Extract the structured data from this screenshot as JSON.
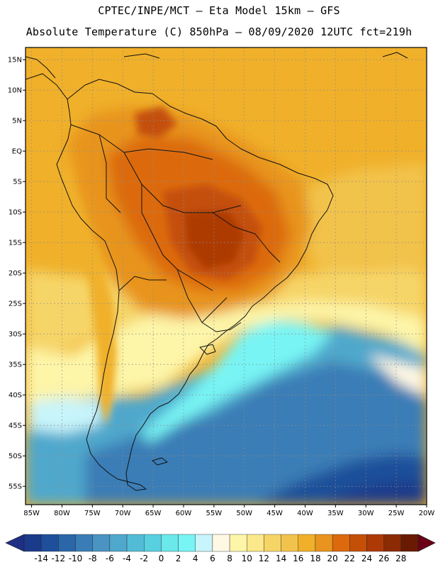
{
  "title": {
    "line1": "CPTEC/INPE/MCT –  Eta Model 15km – GFS",
    "line2": "Absolute Temperature (C) 850hPa – 08/09/2020 12UTC fct=219h"
  },
  "map": {
    "projection": "lat-lon",
    "lon_range": [
      -86,
      -20
    ],
    "lat_range": [
      -58,
      17
    ],
    "lat_ticks": [
      "15N",
      "10N",
      "5N",
      "EQ",
      "5S",
      "10S",
      "15S",
      "20S",
      "25S",
      "30S",
      "35S",
      "40S",
      "45S",
      "50S",
      "55S"
    ],
    "lon_ticks": [
      "85W",
      "80W",
      "75W",
      "70W",
      "65W",
      "60W",
      "55W",
      "50W",
      "45W",
      "40W",
      "35W",
      "30W",
      "25W",
      "20W"
    ],
    "variable": "Absolute Temperature",
    "units": "C",
    "level": "850hPa"
  },
  "colorbar": {
    "labels": [
      "-14",
      "-12",
      "-10",
      "-8",
      "-6",
      "-4",
      "-2",
      "0",
      "2",
      "4",
      "6",
      "8",
      "10",
      "12",
      "14",
      "16",
      "18",
      "20",
      "22",
      "24",
      "26",
      "28"
    ],
    "colors": [
      "#1a3a8a",
      "#1f4f9a",
      "#2a66a8",
      "#3a7db6",
      "#4a93c2",
      "#4fa8cc",
      "#52bcd6",
      "#58d0e0",
      "#6ae8ea",
      "#78f4f4",
      "#c8f4fb",
      "#fff8e4",
      "#fdf5a8",
      "#fbe88a",
      "#f6d567",
      "#f2c34c",
      "#f0b02a",
      "#e8941e",
      "#dc6a0c",
      "#c45008",
      "#ad3a06",
      "#8c2a04",
      "#6a1a02"
    ],
    "under_color": "#1e2f84",
    "over_color": "#6a0016"
  }
}
